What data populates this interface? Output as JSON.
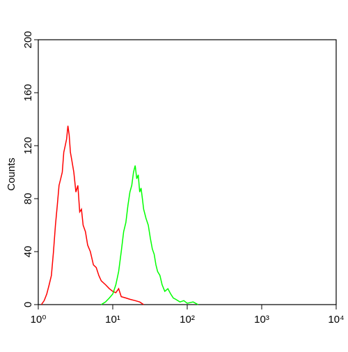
{
  "chart_data": {
    "type": "line",
    "ylabel": "Counts",
    "xscale": "log",
    "xlim": [
      1,
      10000
    ],
    "ylim": [
      0,
      200
    ],
    "xticks": [
      {
        "value": 1,
        "label": "10⁰"
      },
      {
        "value": 10,
        "label": "10¹"
      },
      {
        "value": 100,
        "label": "10²"
      },
      {
        "value": 1000,
        "label": "10³"
      },
      {
        "value": 10000,
        "label": "10⁴"
      }
    ],
    "yticks": [
      0,
      40,
      80,
      120,
      160,
      200
    ],
    "series": [
      {
        "color": "#ff0000",
        "x": [
          1.1,
          1.2,
          1.3,
          1.4,
          1.5,
          1.6,
          1.7,
          1.8,
          1.9,
          2.0,
          2.1,
          2.2,
          2.3,
          2.4,
          2.5,
          2.6,
          2.7,
          2.8,
          3.0,
          3.2,
          3.4,
          3.6,
          3.8,
          4.0,
          4.3,
          4.6,
          5.0,
          5.5,
          6,
          6.5,
          7,
          8,
          9,
          10,
          11,
          12,
          13,
          15,
          17,
          20,
          23,
          26
        ],
        "y": [
          0,
          3,
          8,
          15,
          22,
          40,
          60,
          75,
          90,
          95,
          100,
          115,
          120,
          125,
          135,
          128,
          115,
          110,
          100,
          85,
          90,
          70,
          72,
          60,
          55,
          45,
          40,
          30,
          28,
          22,
          18,
          15,
          12,
          10,
          9,
          12,
          6,
          5,
          4,
          3,
          2,
          0
        ]
      },
      {
        "color": "#00ff00",
        "x": [
          7,
          8,
          9,
          10,
          11,
          12,
          13,
          14,
          15,
          16,
          17,
          18,
          19,
          20,
          21,
          22,
          23,
          24,
          25,
          26,
          28,
          30,
          32,
          34,
          36,
          38,
          40,
          43,
          46,
          50,
          55,
          60,
          65,
          70,
          80,
          90,
          100,
          120,
          140
        ],
        "y": [
          0,
          2,
          5,
          8,
          15,
          25,
          40,
          55,
          62,
          75,
          85,
          90,
          100,
          105,
          95,
          98,
          85,
          88,
          80,
          72,
          65,
          60,
          50,
          42,
          38,
          30,
          25,
          22,
          15,
          10,
          12,
          8,
          5,
          4,
          2,
          3,
          1,
          2,
          0
        ]
      }
    ]
  }
}
